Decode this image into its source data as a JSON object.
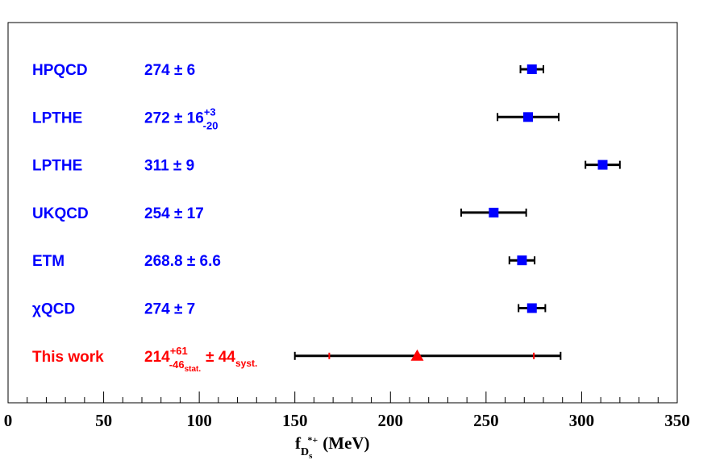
{
  "chart_data": {
    "type": "scatter",
    "title": "",
    "xlabel": {
      "main": "f",
      "sub": "D",
      "subsub": "s",
      "sup": "*+",
      "unit": "(MeV)"
    },
    "ylabel": "",
    "xlim": [
      0,
      350
    ],
    "x_ticks": [
      "0",
      "50",
      "100",
      "150",
      "200",
      "250",
      "300",
      "350"
    ],
    "x_tick_values": [
      0,
      50,
      100,
      150,
      200,
      250,
      300,
      350
    ],
    "grid": false,
    "legend": "none",
    "colors": {
      "lattice": "#0000ff",
      "this_work": "#ff0000",
      "error_bar": "#000000"
    },
    "entries": [
      {
        "name": "HPQCD",
        "value_text": "274 ± 6",
        "x": 274,
        "err_minus": 6,
        "err_plus": 6,
        "marker": "square"
      },
      {
        "name": "LPTHE",
        "value_text": "272 ± 16",
        "value_sup": "+3",
        "value_sub": "-20",
        "x": 272,
        "err_minus": 16,
        "err_plus": 16,
        "marker": "square"
      },
      {
        "name": "LPTHE",
        "value_text": "311 ± 9",
        "x": 311,
        "err_minus": 9,
        "err_plus": 9,
        "marker": "square"
      },
      {
        "name": "UKQCD",
        "value_text": "254 ± 17",
        "x": 254,
        "err_minus": 17,
        "err_plus": 17,
        "marker": "square"
      },
      {
        "name": "ETM",
        "value_text": "268.8 ± 6.6",
        "x": 268.8,
        "err_minus": 6.6,
        "err_plus": 6.6,
        "marker": "square"
      },
      {
        "name": "χQCD",
        "value_text": "274 ± 7",
        "x": 274,
        "err_minus": 7,
        "err_plus": 7,
        "marker": "square"
      },
      {
        "name": "This work",
        "value_text": "214",
        "value_sup": "+61",
        "value_sub": "-46",
        "value_subsub": "stat.",
        "value_pm": "± 44",
        "value_pm_sub": "syst.",
        "x": 214,
        "err_minus": 64,
        "err_plus": 75,
        "stat_minus": 46,
        "stat_plus": 61,
        "marker": "triangle"
      }
    ]
  }
}
